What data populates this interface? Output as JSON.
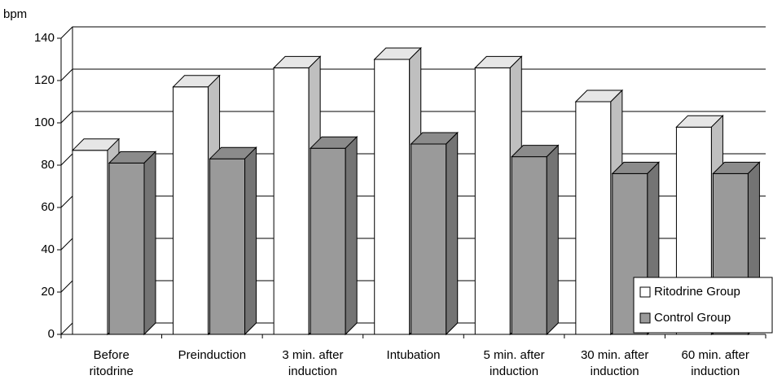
{
  "chart_data": {
    "type": "bar",
    "y_axis_label": "bpm",
    "categories": [
      "Before ritodrine",
      "Preinduction",
      "3 min. after induction",
      "Intubation",
      "5 min. after induction",
      "30 min. after induction",
      "60 min. after induction"
    ],
    "series": [
      {
        "name": "Ritodrine Group",
        "color": "#ffffff",
        "values": [
          87,
          117,
          126,
          130,
          126,
          110,
          98
        ]
      },
      {
        "name": "Control Group",
        "color": "#9a9a9a",
        "values": [
          81,
          83,
          88,
          90,
          84,
          76,
          76
        ]
      }
    ],
    "ylim": [
      0,
      140
    ],
    "yticks": [
      0,
      20,
      40,
      60,
      80,
      100,
      120,
      140
    ],
    "grid": true,
    "legend": "bottom-right"
  }
}
